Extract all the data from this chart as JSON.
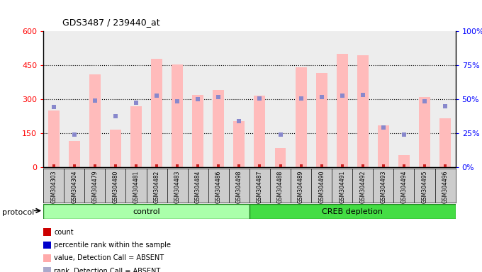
{
  "title": "GDS3487 / 239440_at",
  "samples": [
    "GSM304303",
    "GSM304304",
    "GSM304479",
    "GSM304480",
    "GSM304481",
    "GSM304482",
    "GSM304483",
    "GSM304484",
    "GSM304486",
    "GSM304498",
    "GSM304487",
    "GSM304488",
    "GSM304489",
    "GSM304490",
    "GSM304491",
    "GSM304492",
    "GSM304493",
    "GSM304494",
    "GSM304495",
    "GSM304496"
  ],
  "pink_bars": [
    250,
    115,
    410,
    165,
    270,
    480,
    455,
    320,
    340,
    205,
    315,
    85,
    440,
    415,
    500,
    495,
    185,
    55,
    310,
    215
  ],
  "blue_rank_markers": [
    265,
    145,
    295,
    225,
    285,
    315,
    290,
    300,
    310,
    205,
    305,
    145,
    305,
    310,
    315,
    320,
    175,
    145,
    290,
    270
  ],
  "control_count": 10,
  "creb_count": 10,
  "ylim_left": [
    0,
    600
  ],
  "ylim_right": [
    0,
    100
  ],
  "yticks_left": [
    0,
    150,
    300,
    450,
    600
  ],
  "yticks_right": [
    0,
    25,
    50,
    75,
    100
  ],
  "ytick_labels_right": [
    "0%",
    "25%",
    "50%",
    "75%",
    "100%"
  ],
  "group_labels": [
    "control",
    "CREB depletion"
  ],
  "protocol_label": "protocol",
  "legend_labels": [
    "count",
    "percentile rank within the sample",
    "value, Detection Call = ABSENT",
    "rank, Detection Call = ABSENT"
  ],
  "legend_colors": [
    "#cc0000",
    "#0000cc",
    "#ffaaaa",
    "#aaaacc"
  ],
  "bar_color": "#ffbbbb",
  "blue_marker_color": "#8888cc",
  "red_marker_color": "#cc2222",
  "control_bg_light": "#aaffaa",
  "control_bg_dark": "#44dd44",
  "bar_width": 0.55
}
